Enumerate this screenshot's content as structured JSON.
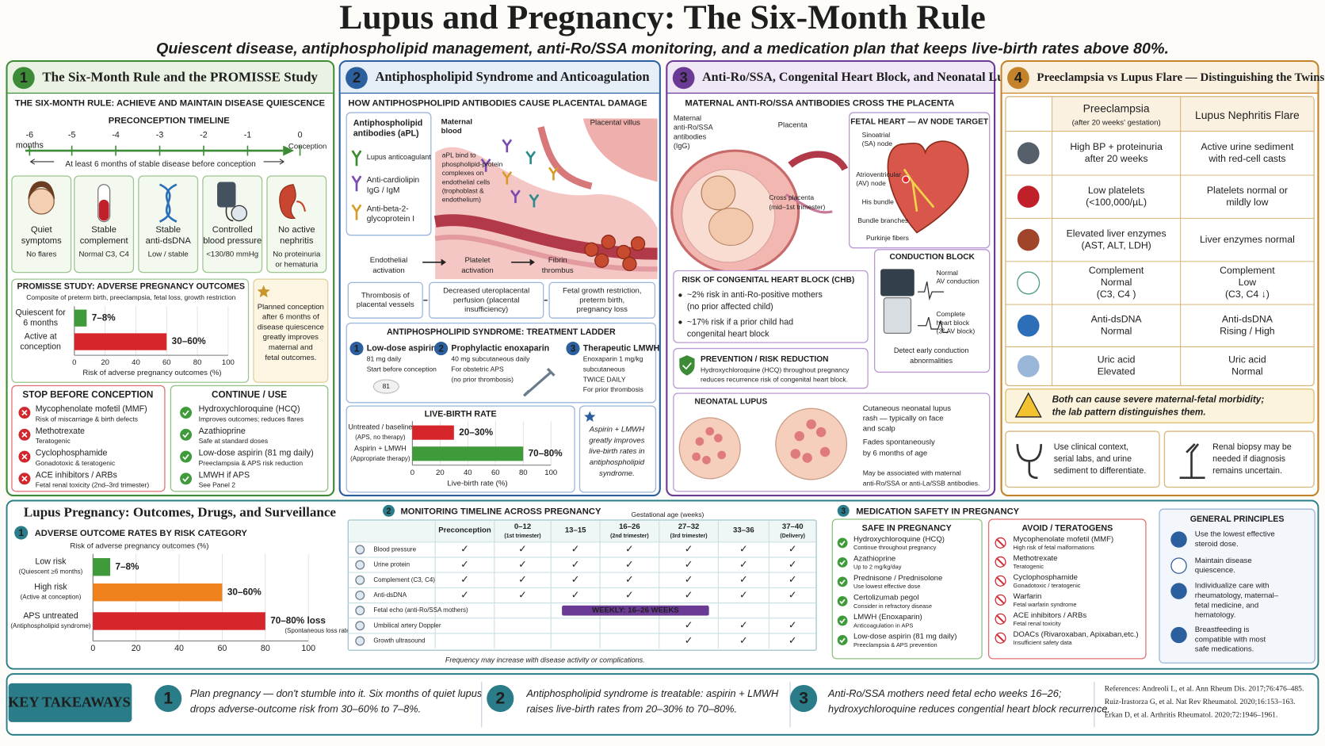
{
  "header": {
    "title": "Lupus and Pregnancy: The Six-Month Rule",
    "subtitle": "Quiescent disease, antiphospholipid management, anti-Ro/SSA monitoring, and a medication plan that keeps live-birth rates above 80%."
  },
  "panel1": {
    "number": "1",
    "title": "The Six-Month Rule and the PROMISSE Study",
    "heading": "THE SIX-MONTH RULE: ACHIEVE AND MAINTAIN DISEASE QUIESCENCE",
    "timeline_title": "PRECONCEPTION TIMELINE",
    "timeline_ticks": [
      [
        "-6",
        "months"
      ],
      "-5",
      "-4",
      "-3",
      "-2",
      "-1",
      "0"
    ],
    "conception": "Conception",
    "timeline_note": "At least 6 months of stable disease before conception",
    "criteria": [
      {
        "title": [
          "Quiet",
          "symptoms"
        ],
        "detail": [
          "No flares"
        ]
      },
      {
        "title": [
          "Stable",
          "complement"
        ],
        "detail": [
          "Normal C3, C4"
        ]
      },
      {
        "title": [
          "Stable",
          "anti-dsDNA"
        ],
        "detail": [
          "Low / stable"
        ]
      },
      {
        "title": [
          "Controlled",
          "blood pressure"
        ],
        "detail": [
          "<130/80 mmHg"
        ]
      },
      {
        "title": [
          "No active",
          "nephritis"
        ],
        "detail": [
          "No proteinuria",
          "or hematuria"
        ]
      }
    ],
    "promisse": {
      "type": "bar",
      "title": "PROMISSE STUDY: ADVERSE PREGNANCY OUTCOMES",
      "subtitle": "Composite of preterm birth, preeclampsia, fetal loss, growth restriction",
      "categories": [
        [
          "Quiescent for",
          "6 months"
        ],
        [
          "Active at",
          "conception"
        ]
      ],
      "values": [
        8,
        60
      ],
      "value_labels": [
        "7–8%",
        "30–60%"
      ],
      "colors": [
        "#3f9a3a",
        "#d7262b"
      ],
      "xlim": [
        0,
        100
      ],
      "xticks": [
        0,
        20,
        40,
        60,
        80,
        100
      ],
      "x_label": "Risk of adverse pregnancy outcomes (%)"
    },
    "note": [
      "Planned conception",
      "after 6 months of",
      "disease quiescence",
      "greatly improves",
      "maternal and",
      "fetal outcomes."
    ],
    "stop": {
      "heading": "STOP BEFORE CONCEPTION",
      "items": [
        {
          "name": "Mycophenolate mofetil (MMF)",
          "detail": "Risk of miscarriage & birth defects"
        },
        {
          "name": "Methotrexate",
          "detail": "Teratogenic"
        },
        {
          "name": "Cyclophosphamide",
          "detail": "Gonadotoxic & teratogenic"
        },
        {
          "name": "ACE inhibitors / ARBs",
          "detail": "Fetal renal toxicity (2nd–3rd trimester)"
        }
      ]
    },
    "continue": {
      "heading": "CONTINUE / USE",
      "items": [
        {
          "name": "Hydroxychloroquine (HCQ)",
          "detail": "Improves outcomes; reduces flares"
        },
        {
          "name": "Azathioprine",
          "detail": "Safe at standard doses"
        },
        {
          "name": "Low-dose aspirin (81 mg daily)",
          "detail": "Preeclampsia & APS risk reduction"
        },
        {
          "name": "LMWH if APS",
          "detail": "See Panel 2"
        }
      ]
    }
  },
  "panel2": {
    "number": "2",
    "title": "Antiphospholipid Syndrome and Anticoagulation",
    "heading": "HOW ANTIPHOSPHOLIPID ANTIBODIES CAUSE PLACENTAL DAMAGE",
    "antibodies_title": [
      "Antiphospholipid",
      "antibodies (aPL)"
    ],
    "antibodies": [
      [
        "Lupus anticoagulant"
      ],
      [
        "Anti-cardiolipin",
        "IgG / IgM"
      ],
      [
        "Anti-beta-2-",
        "glycoprotein I"
      ]
    ],
    "maternal_blood": [
      "Maternal",
      "blood"
    ],
    "villus": "Placental villus",
    "binding": [
      "aPL bind to",
      "phospholipid-protein",
      "complexes on",
      "endothelial cells",
      "(trophoblast &",
      "endothelium)"
    ],
    "flow": [
      [
        "Endothelial",
        "activation"
      ],
      [
        "Platelet",
        "activation"
      ],
      [
        "Fibrin",
        "thrombus"
      ]
    ],
    "outcomes": [
      [
        "Thrombosis of",
        "placental vessels"
      ],
      [
        "Decreased uteroplacental",
        "perfusion (placental",
        "insufficiency)"
      ],
      [
        "Fetal growth restriction,",
        "preterm birth,",
        "pregnancy loss"
      ]
    ],
    "ladder": {
      "heading": "ANTIPHOSPHOLIPID SYNDROME: TREATMENT LADDER",
      "steps": [
        {
          "number": "1",
          "title": "Low-dose aspirin",
          "lines": [
            "81 mg daily",
            "Start before conception"
          ]
        },
        {
          "number": "2",
          "title": "Prophylactic enoxaparin",
          "lines": [
            "40 mg subcutaneous daily",
            "For obstetric APS",
            "(no prior thrombosis)"
          ]
        },
        {
          "number": "3",
          "title": "Therapeutic LMWH",
          "lines": [
            "Enoxaparin 1 mg/kg",
            "subcutaneous",
            "TWICE DAILY",
            "For prior thrombosis"
          ]
        }
      ],
      "pill": "81"
    },
    "live_birth": {
      "type": "bar",
      "title": "LIVE-BIRTH RATE",
      "categories": [
        [
          "Untreated / baseline",
          "(APS, no therapy)"
        ],
        [
          "Aspirin + LMWH",
          "(Appropriate therapy)"
        ]
      ],
      "values": [
        30,
        80
      ],
      "value_labels": [
        "20–30%",
        "70–80%"
      ],
      "colors": [
        "#d7262b",
        "#3f9a3a"
      ],
      "xlim": [
        0,
        100
      ],
      "xticks": [
        0,
        20,
        40,
        60,
        80,
        100
      ],
      "x_label": "Live-birth rate (%)"
    },
    "note": [
      "Aspirin + LMWH",
      "greatly improves",
      "live-birth rates in",
      "antiphospholipid",
      "syndrome."
    ]
  },
  "panel3": {
    "number": "3",
    "title": "Anti-Ro/SSA, Congenital Heart Block, and Neonatal Lupus",
    "heading": "MATERNAL ANTI-RO/SSA ANTIBODIES CROSS THE PLACENTA",
    "maternal": [
      "Maternal",
      "anti-Ro/SSA",
      "antibodies",
      "(IgG)"
    ],
    "placenta": "Placenta",
    "cross": [
      "Cross placenta",
      "(mid–1st trimester)"
    ],
    "heart": {
      "heading": "FETAL HEART — AV NODE TARGET",
      "sa": [
        "Sinoatrial",
        "(SA) node"
      ],
      "av": [
        "Atrioventricular",
        "(AV) node"
      ],
      "his": "His bundle",
      "branches": "Bundle branches",
      "purkinje": "Purkinje fibers"
    },
    "chb": {
      "heading": "RISK OF CONGENITAL HEART BLOCK (CHB)",
      "items": [
        [
          "~2% risk in anti-Ro-positive mothers",
          "(no prior affected child)"
        ],
        [
          "~17% risk if a prior child had",
          "congenital heart block"
        ]
      ]
    },
    "conduction": {
      "heading": "CONDUCTION BLOCK",
      "normal": [
        "Normal",
        "AV conduction"
      ],
      "block": [
        "Complete",
        "heart block",
        "(3° AV block)"
      ],
      "detect": [
        "Detect early conduction",
        "abnormalities"
      ]
    },
    "prevention": {
      "heading": "PREVENTION / RISK REDUCTION",
      "lines": [
        "Hydroxychloroquine (HCQ) throughout pregnancy",
        "reduces recurrence risk of congenital heart block."
      ]
    },
    "neonatal": {
      "heading": "NEONATAL LUPUS",
      "rash": [
        "Cutaneous neonatal lupus",
        "rash — typically on face",
        "and scalp"
      ],
      "fades": [
        "Fades spontaneously",
        "by 6 months of age"
      ],
      "assoc": [
        "May be associated with maternal",
        "anti-Ro/SSA or anti-La/SSB antibodies."
      ]
    }
  },
  "panel4": {
    "number": "4",
    "title": "Preeclampsia vs Lupus Flare — Distinguishing the Twins",
    "columns": [
      [
        "Preeclampsia",
        "(after 20 weeks' gestation)"
      ],
      [
        "Lupus Nephritis Flare"
      ]
    ],
    "rows": [
      {
        "preeclampsia": [
          "High BP + proteinuria",
          "after 20 weeks"
        ],
        "flare": [
          "Active urine sediment",
          "with red-cell casts"
        ]
      },
      {
        "preeclampsia": [
          "Low platelets",
          "(<100,000/µL)"
        ],
        "flare": [
          "Platelets normal or",
          "mildly low"
        ]
      },
      {
        "preeclampsia": [
          "Elevated liver enzymes",
          "(AST, ALT, LDH)"
        ],
        "flare": [
          "Liver enzymes normal"
        ]
      },
      {
        "preeclampsia": [
          "Complement",
          "Normal",
          "(C3, C4 )"
        ],
        "flare": [
          "Complement",
          "Low",
          "(C3, C4 ↓)"
        ]
      },
      {
        "preeclampsia": [
          "Anti-dsDNA",
          "Normal"
        ],
        "flare": [
          "Anti-dsDNA",
          "Rising / High"
        ]
      },
      {
        "preeclampsia": [
          "Uric acid",
          "Elevated"
        ],
        "flare": [
          "Uric acid",
          "Normal"
        ]
      }
    ],
    "warning": [
      "Both can cause severe maternal-fetal morbidity;",
      "the lab pattern distinguishes them."
    ],
    "tips": [
      [
        "Use clinical context,",
        "serial labs, and urine",
        "sediment to differentiate."
      ],
      [
        "Renal biopsy may be",
        "needed if diagnosis",
        "remains uncertain."
      ]
    ]
  },
  "bottom": {
    "title": "Lupus Pregnancy:  Outcomes, Drugs, and Surveillance",
    "adverse": {
      "type": "bar",
      "number": "1",
      "title": "ADVERSE OUTCOME RATES BY RISK CATEGORY",
      "subtitle": "Risk of adverse pregnancy outcomes (%)",
      "categories": [
        [
          "Low risk",
          "(Quiescent ≥6 months)"
        ],
        [
          "High risk",
          "(Active at conception)"
        ],
        [
          "APS untreated",
          "(Antiphospholipid syndrome)"
        ]
      ],
      "values": [
        8,
        60,
        80
      ],
      "value_labels": [
        "7–8%",
        "30–60%",
        "70–80% loss"
      ],
      "annotation": "(Spontaneous loss rate)",
      "colors": [
        "#3f9a3a",
        "#f0821e",
        "#d7262b"
      ],
      "xlim": [
        0,
        100
      ],
      "xticks": [
        0,
        20,
        40,
        60,
        80,
        100
      ]
    },
    "monitoring": {
      "number": "2",
      "title": "MONITORING TIMELINE ACROSS PREGNANCY",
      "axis_label": "Gestational age (weeks)",
      "columns": [
        [
          "Preconception"
        ],
        [
          "0–12",
          "(1st trimester)"
        ],
        [
          "13–15"
        ],
        [
          "16–26",
          "(2nd trimester)"
        ],
        [
          "27–32",
          "(3rd trimester)"
        ],
        [
          "33–36"
        ],
        [
          "37–40",
          "(Delivery)"
        ]
      ],
      "rows": [
        {
          "label": "Blood pressure",
          "cells": [
            "✓",
            "✓",
            "✓",
            "✓",
            "✓",
            "✓",
            "✓"
          ]
        },
        {
          "label": "Urine protein",
          "cells": [
            "✓",
            "✓",
            "✓",
            "✓",
            "✓",
            "✓",
            "✓"
          ]
        },
        {
          "label": "Complement (C3, C4)",
          "cells": [
            "✓",
            "✓",
            "✓",
            "✓",
            "✓",
            "✓",
            "✓"
          ]
        },
        {
          "label": "Anti-dsDNA",
          "cells": [
            "✓",
            "✓",
            "✓",
            "✓",
            "✓",
            "✓",
            "✓"
          ]
        },
        {
          "label": "Fetal echo (anti-Ro/SSA mothers)",
          "span": "WEEKLY: 16–26 WEEKS"
        },
        {
          "label": "Umbilical artery Doppler",
          "cells": [
            null,
            null,
            null,
            null,
            "✓",
            "✓",
            "✓"
          ]
        },
        {
          "label": "Growth ultrasound",
          "cells": [
            null,
            null,
            null,
            null,
            "✓",
            "✓",
            "✓"
          ]
        }
      ],
      "footnote": "Frequency may increase with disease activity or complications."
    },
    "medication": {
      "number": "3",
      "title": "MEDICATION SAFETY IN PREGNANCY",
      "safe": {
        "heading": "SAFE IN PREGNANCY",
        "items": [
          {
            "name": "Hydroxychloroquine (HCQ)",
            "detail": "Continue throughout pregnancy"
          },
          {
            "name": "Azathioprine",
            "detail": "Up to 2 mg/kg/day"
          },
          {
            "name": "Prednisone / Prednisolone",
            "detail": "Use lowest effective dose"
          },
          {
            "name": "Certolizumab pegol",
            "detail": "Consider in refractory disease"
          },
          {
            "name": "LMWH (Enoxaparin)",
            "detail": "Anticoagulation in APS"
          },
          {
            "name": "Low-dose aspirin (81 mg daily)",
            "detail": "Preeclampsia & APS prevention"
          }
        ]
      },
      "avoid": {
        "heading": "AVOID / TERATOGENS",
        "items": [
          {
            "name": "Mycophenolate mofetil (MMF)",
            "detail": "High risk of fetal malformations"
          },
          {
            "name": "Methotrexate",
            "detail": "Teratogenic"
          },
          {
            "name": "Cyclophosphamide",
            "detail": "Gonadotoxic / teratogenic"
          },
          {
            "name": "Warfarin",
            "detail": "Fetal warfarin syndrome"
          },
          {
            "name": "ACE inhibitors / ARBs",
            "detail": "Fetal renal toxicity"
          },
          {
            "name": "DOACs (Rivaroxaban, Apixaban,etc.)",
            "detail": "Insufficient safety data"
          }
        ]
      }
    },
    "principles": {
      "heading": "GENERAL PRINCIPLES",
      "items": [
        [
          "Use the lowest effective",
          "steroid dose."
        ],
        [
          "Maintain disease",
          "quiescence."
        ],
        [
          "Individualize care with",
          "rheumatology, maternal–",
          "fetal medicine, and",
          "hematology."
        ],
        [
          "Breastfeeding is",
          "compatible with most",
          "safe medications."
        ]
      ]
    }
  },
  "takeaways": {
    "heading": "KEY TAKEAWAYS",
    "items": [
      {
        "number": "1",
        "lines": [
          "Plan pregnancy — don't stumble into it. Six months of quiet lupus",
          "drops adverse-outcome risk from 30–60% to 7–8%."
        ]
      },
      {
        "number": "2",
        "lines": [
          "Antiphospholipid syndrome is treatable: aspirin + LMWH",
          "raises live-birth rates from 20–30% to 70–80%."
        ]
      },
      {
        "number": "3",
        "lines": [
          "Anti-Ro/SSA mothers need fetal echo weeks 16–26;",
          "hydroxychloroquine reduces congential heart block recurrence."
        ]
      }
    ],
    "references": [
      "References: Andreoli L, et al. Ann Rheum Dis. 2017;76:476–485.",
      "Ruiz-Irastorza G, et al. Nat Rev Rheumatol. 2020;16:153–163.",
      "Erkan D, et al. Arthritis Rheumatol. 2020;72:1946–1961."
    ]
  }
}
